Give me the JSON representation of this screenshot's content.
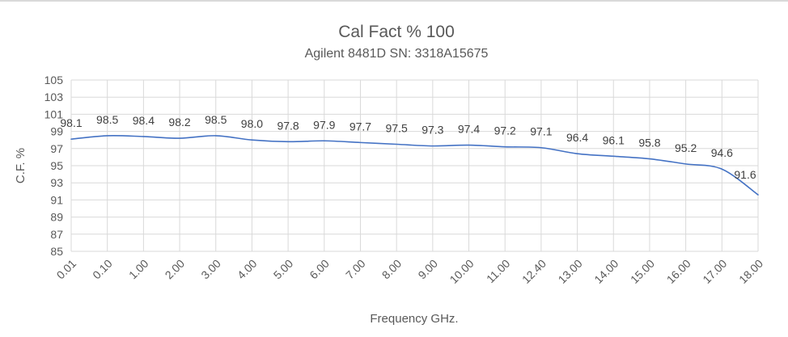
{
  "window": {
    "top_border_color": "#d9d9d9",
    "background_color": "#ffffff"
  },
  "chart_data": {
    "type": "line",
    "title": "Cal Fact % 100",
    "subtitle": "Agilent 8481D SN: 3318A15675",
    "xlabel": "Frequency GHz.",
    "ylabel": "C.F. %",
    "categories": [
      "0.01",
      "0.10",
      "1.00",
      "2.00",
      "3.00",
      "4.00",
      "5.00",
      "6.00",
      "7.00",
      "8.00",
      "9.00",
      "10.00",
      "11.00",
      "12.40",
      "13.00",
      "14.00",
      "15.00",
      "16.00",
      "17.00",
      "18.00"
    ],
    "series": [
      {
        "name": "C.F. %",
        "values": [
          98.1,
          98.5,
          98.4,
          98.2,
          98.5,
          98.0,
          97.8,
          97.9,
          97.7,
          97.5,
          97.3,
          97.4,
          97.2,
          97.1,
          96.4,
          96.1,
          95.8,
          95.2,
          94.6,
          91.6
        ]
      }
    ],
    "data_labels": [
      "98.1",
      "98.5",
      "98.4",
      "98.2",
      "98.5",
      "98.0",
      "97.8",
      "97.9",
      "97.7",
      "97.5",
      "97.3",
      "97.4",
      "97.2",
      "97.1",
      "96.4",
      "96.1",
      "95.8",
      "95.2",
      "94.6",
      "91.6"
    ],
    "ylim": [
      85,
      105
    ],
    "y_ticks": [
      "85",
      "87",
      "89",
      "91",
      "93",
      "95",
      "97",
      "99",
      "101",
      "103",
      "105"
    ],
    "grid": true,
    "legend": "none",
    "smoothed_line": true,
    "line_color": "#4472C4",
    "colors": {
      "title_text": "#595959",
      "axis_text": "#595959",
      "data_label_text": "#404040",
      "gridline": "#D9D9D9"
    }
  }
}
